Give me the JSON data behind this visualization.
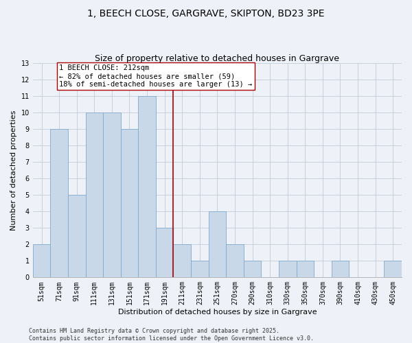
{
  "title": "1, BEECH CLOSE, GARGRAVE, SKIPTON, BD23 3PE",
  "subtitle": "Size of property relative to detached houses in Gargrave",
  "xlabel": "Distribution of detached houses by size in Gargrave",
  "ylabel": "Number of detached properties",
  "bin_labels": [
    "51sqm",
    "71sqm",
    "91sqm",
    "111sqm",
    "131sqm",
    "151sqm",
    "171sqm",
    "191sqm",
    "211sqm",
    "231sqm",
    "251sqm",
    "270sqm",
    "290sqm",
    "310sqm",
    "330sqm",
    "350sqm",
    "370sqm",
    "390sqm",
    "410sqm",
    "430sqm",
    "450sqm"
  ],
  "counts": [
    2,
    9,
    5,
    10,
    10,
    9,
    11,
    3,
    2,
    1,
    4,
    2,
    1,
    0,
    1,
    1,
    0,
    1,
    0,
    0,
    1
  ],
  "bar_color": "#c8d8e8",
  "bar_edge_color": "#7faacc",
  "property_line_color": "#aa0000",
  "annotation_text": "1 BEECH CLOSE: 212sqm\n← 82% of detached houses are smaller (59)\n18% of semi-detached houses are larger (13) →",
  "annotation_box_color": "#ffffff",
  "annotation_box_edge": "#aa0000",
  "ylim": [
    0,
    13
  ],
  "yticks": [
    0,
    1,
    2,
    3,
    4,
    5,
    6,
    7,
    8,
    9,
    10,
    11,
    12,
    13
  ],
  "grid_color": "#c0ccd8",
  "background_color": "#eef2f8",
  "footer_text": "Contains HM Land Registry data © Crown copyright and database right 2025.\nContains public sector information licensed under the Open Government Licence v3.0.",
  "title_fontsize": 10,
  "subtitle_fontsize": 9,
  "label_fontsize": 8,
  "tick_fontsize": 7,
  "annotation_fontsize": 7.5,
  "footer_fontsize": 6
}
